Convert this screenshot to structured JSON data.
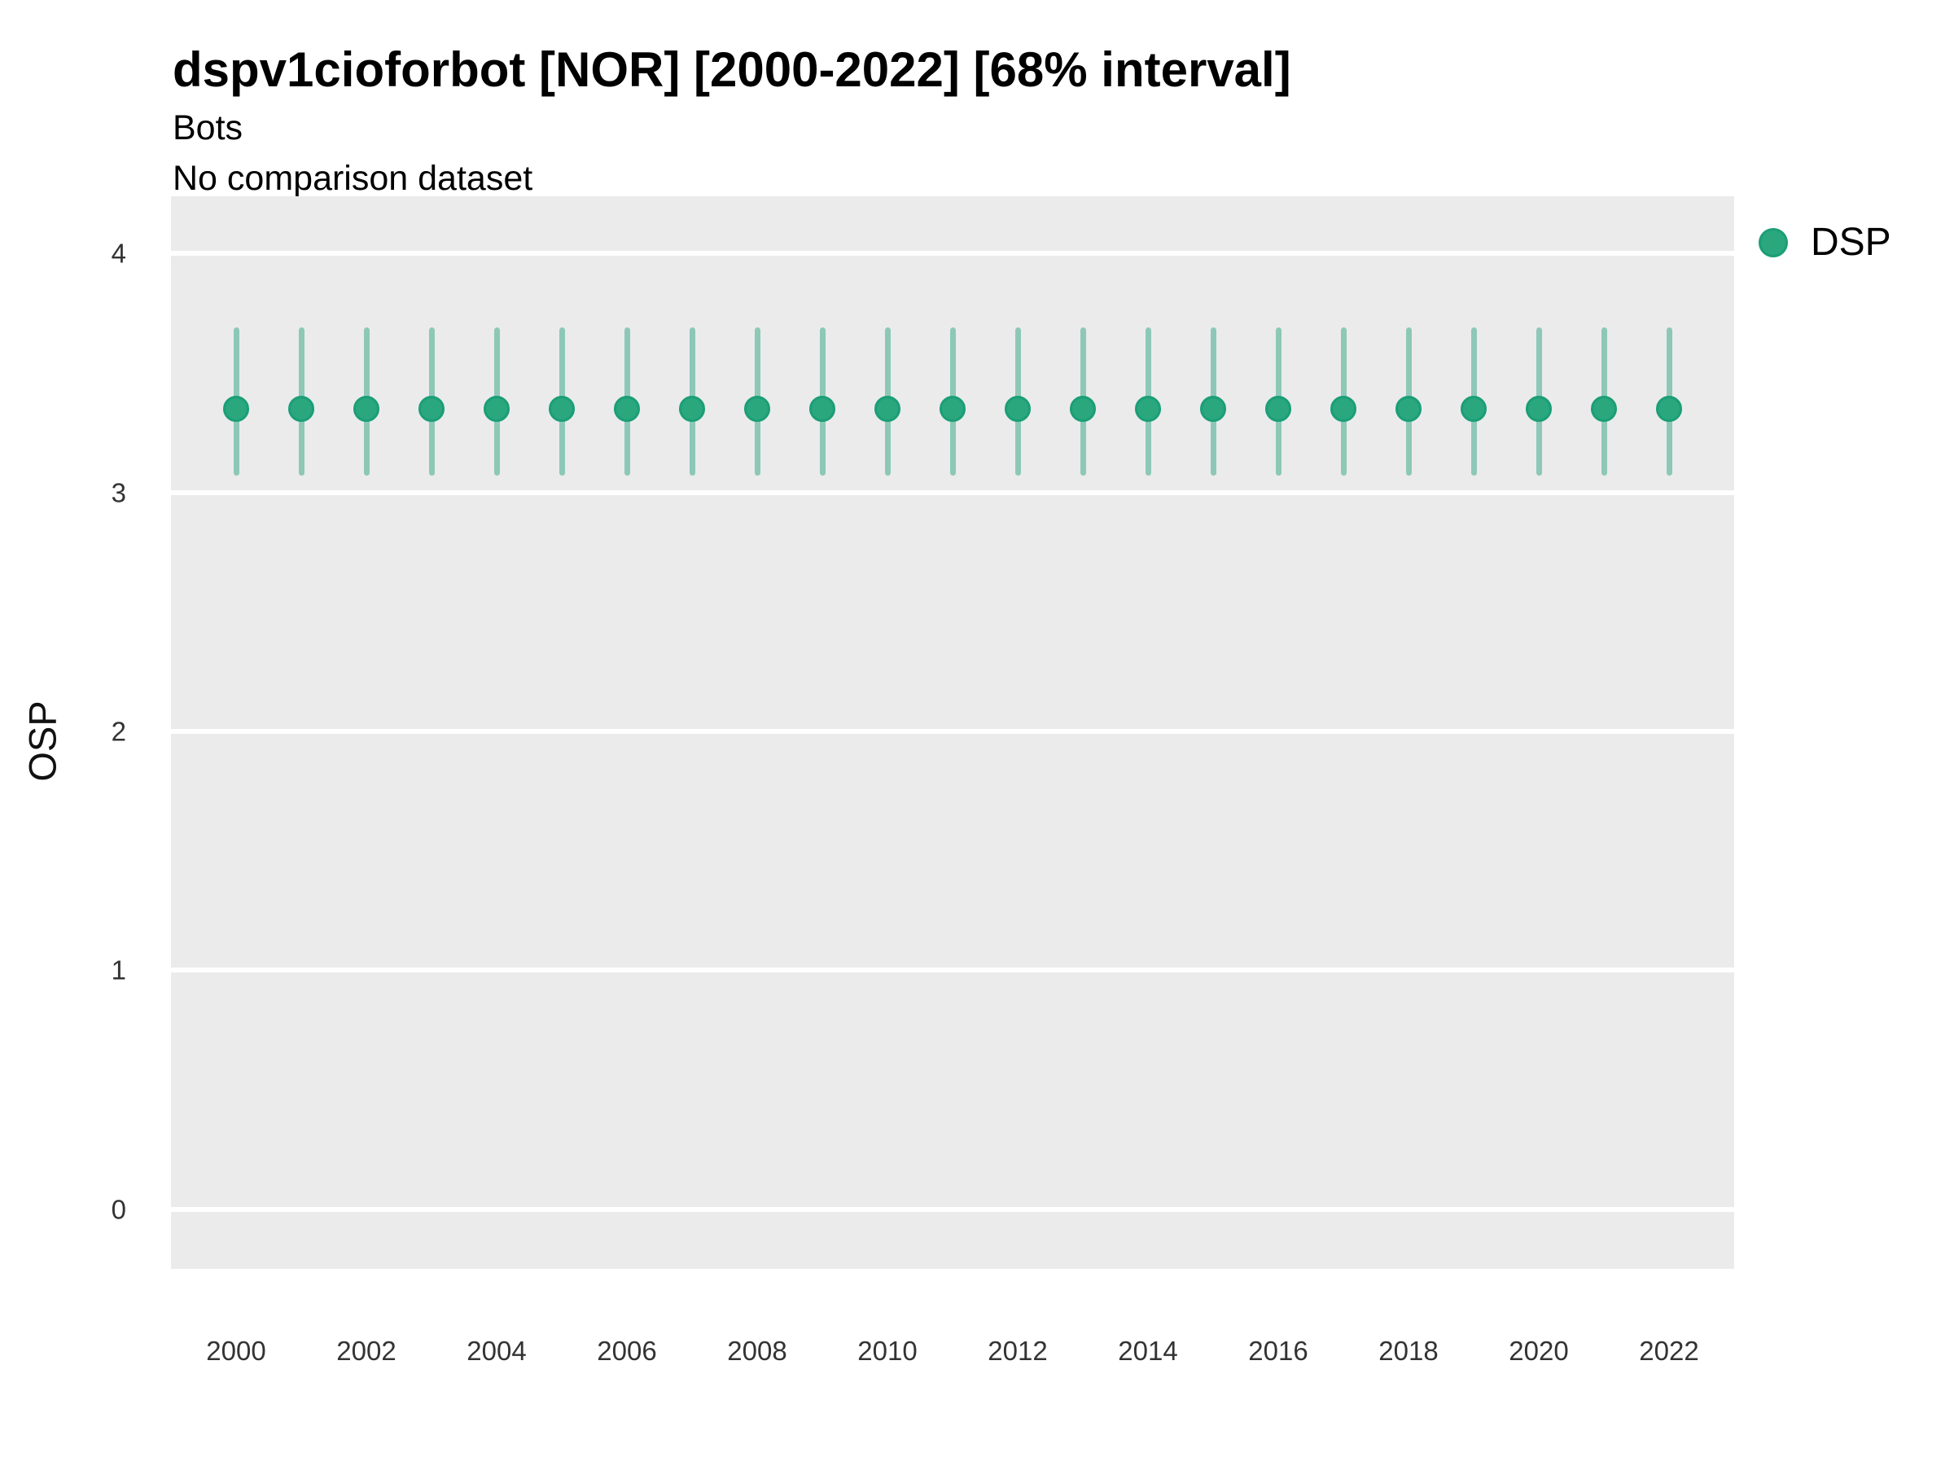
{
  "chart_data": {
    "type": "scatter",
    "title": "dspv1cioforbot [NOR] [2000-2022] [68% interval]",
    "subtitle": "Bots",
    "note": "No comparison dataset",
    "xlabel": "",
    "ylabel": "OSP",
    "interval_label": "68% interval",
    "xlim": [
      1999,
      2023
    ],
    "ylim": [
      -0.25,
      4.24
    ],
    "x_ticks": [
      2000,
      2002,
      2004,
      2006,
      2008,
      2010,
      2012,
      2014,
      2016,
      2018,
      2020,
      2022
    ],
    "y_ticks": [
      0,
      1,
      2,
      3,
      4
    ],
    "grid": "major-horizontal-white",
    "legend_position": "right",
    "x": [
      2000,
      2001,
      2002,
      2003,
      2004,
      2005,
      2006,
      2007,
      2008,
      2009,
      2010,
      2011,
      2012,
      2013,
      2014,
      2015,
      2016,
      2017,
      2018,
      2019,
      2020,
      2021,
      2022
    ],
    "series": [
      {
        "name": "DSP",
        "mid": [
          3.35,
          3.35,
          3.35,
          3.35,
          3.35,
          3.35,
          3.35,
          3.35,
          3.35,
          3.35,
          3.35,
          3.35,
          3.35,
          3.35,
          3.35,
          3.35,
          3.35,
          3.35,
          3.35,
          3.35,
          3.35,
          3.35,
          3.35
        ],
        "low": [
          3.07,
          3.07,
          3.07,
          3.07,
          3.07,
          3.07,
          3.07,
          3.07,
          3.07,
          3.07,
          3.07,
          3.07,
          3.07,
          3.07,
          3.07,
          3.07,
          3.07,
          3.07,
          3.07,
          3.07,
          3.07,
          3.07,
          3.07
        ],
        "high": [
          3.69,
          3.69,
          3.69,
          3.69,
          3.69,
          3.69,
          3.69,
          3.69,
          3.69,
          3.69,
          3.69,
          3.69,
          3.69,
          3.69,
          3.69,
          3.69,
          3.69,
          3.69,
          3.69,
          3.69,
          3.69,
          3.69,
          3.69
        ]
      }
    ],
    "colors": {
      "point_fill": "#2aa77c",
      "point_stroke": "#1b9e77",
      "interval": "rgba(27,158,119,0.45)",
      "panel_bg": "#ebebeb",
      "gridline": "#ffffff",
      "axis_text": "#333333",
      "legend_dot_fill": "#2aa77c",
      "legend_dot_stroke": "#1b9e77"
    }
  }
}
